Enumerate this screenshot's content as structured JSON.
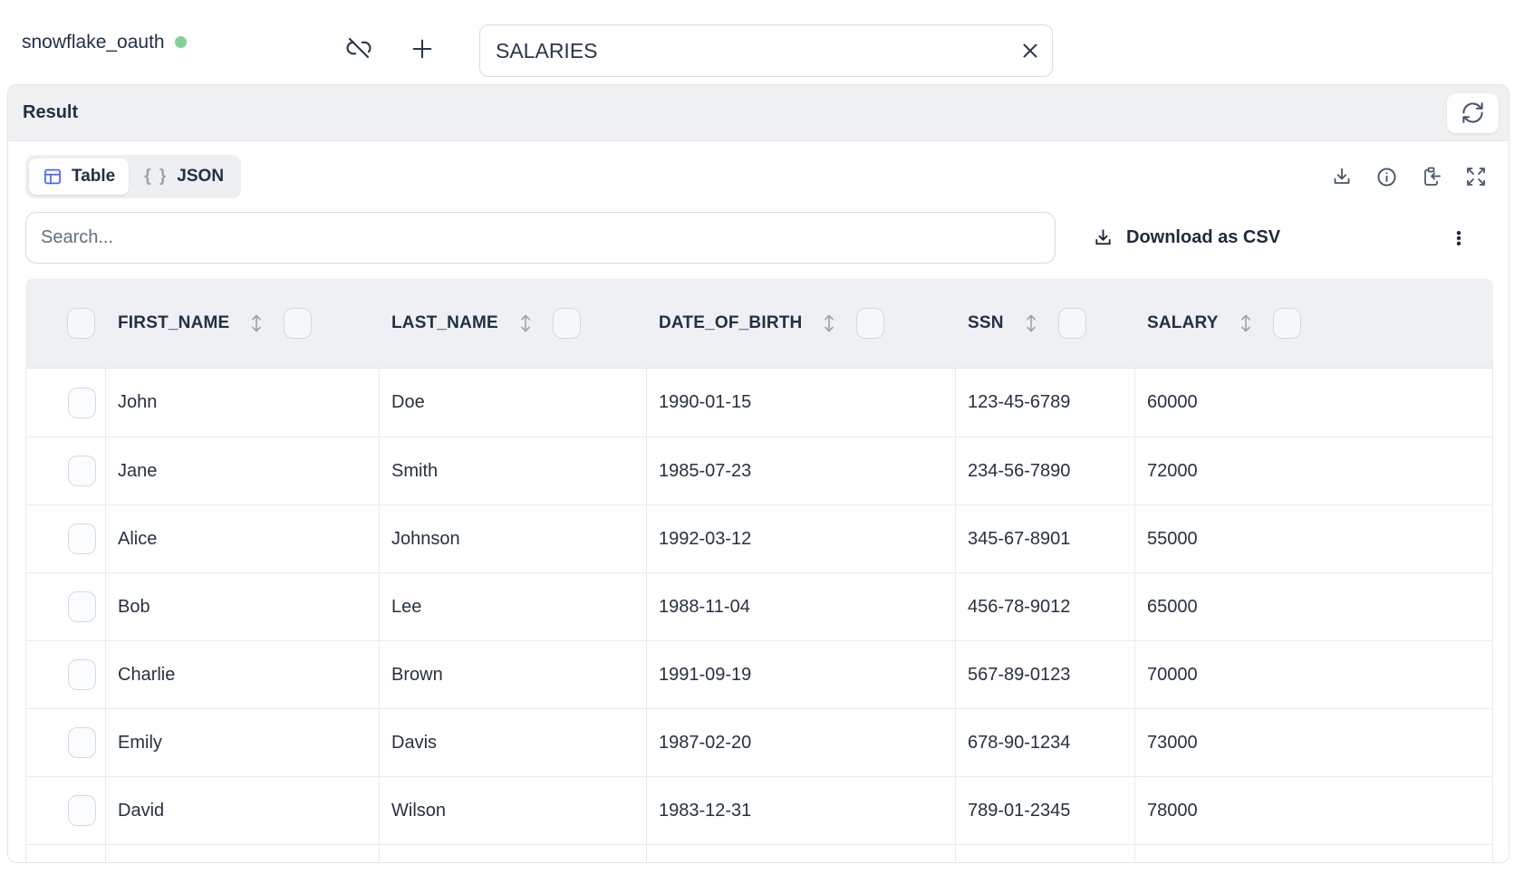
{
  "topbar": {
    "connection_name": "snowflake_oauth",
    "query_input_value": "SALARIES"
  },
  "result_panel": {
    "title": "Result"
  },
  "view_toggle": {
    "table_label": "Table",
    "json_label": "JSON",
    "json_icon_glyph": "{ }"
  },
  "toolbar": {
    "search_placeholder": "Search...",
    "download_csv_label": "Download as CSV"
  },
  "table": {
    "columns": [
      "FIRST_NAME",
      "LAST_NAME",
      "DATE_OF_BIRTH",
      "SSN",
      "SALARY"
    ],
    "rows": [
      [
        "John",
        "Doe",
        "1990-01-15",
        "123-45-6789",
        "60000"
      ],
      [
        "Jane",
        "Smith",
        "1985-07-23",
        "234-56-7890",
        "72000"
      ],
      [
        "Alice",
        "Johnson",
        "1992-03-12",
        "345-67-8901",
        "55000"
      ],
      [
        "Bob",
        "Lee",
        "1988-11-04",
        "456-78-9012",
        "65000"
      ],
      [
        "Charlie",
        "Brown",
        "1991-09-19",
        "567-89-0123",
        "70000"
      ],
      [
        "Emily",
        "Davis",
        "1987-02-20",
        "678-90-1234",
        "73000"
      ],
      [
        "David",
        "Wilson",
        "1983-12-31",
        "789-01-2345",
        "78000"
      ]
    ]
  },
  "colors": {
    "accent_blue": "#4a68f0",
    "status_green": "#84d09b"
  }
}
